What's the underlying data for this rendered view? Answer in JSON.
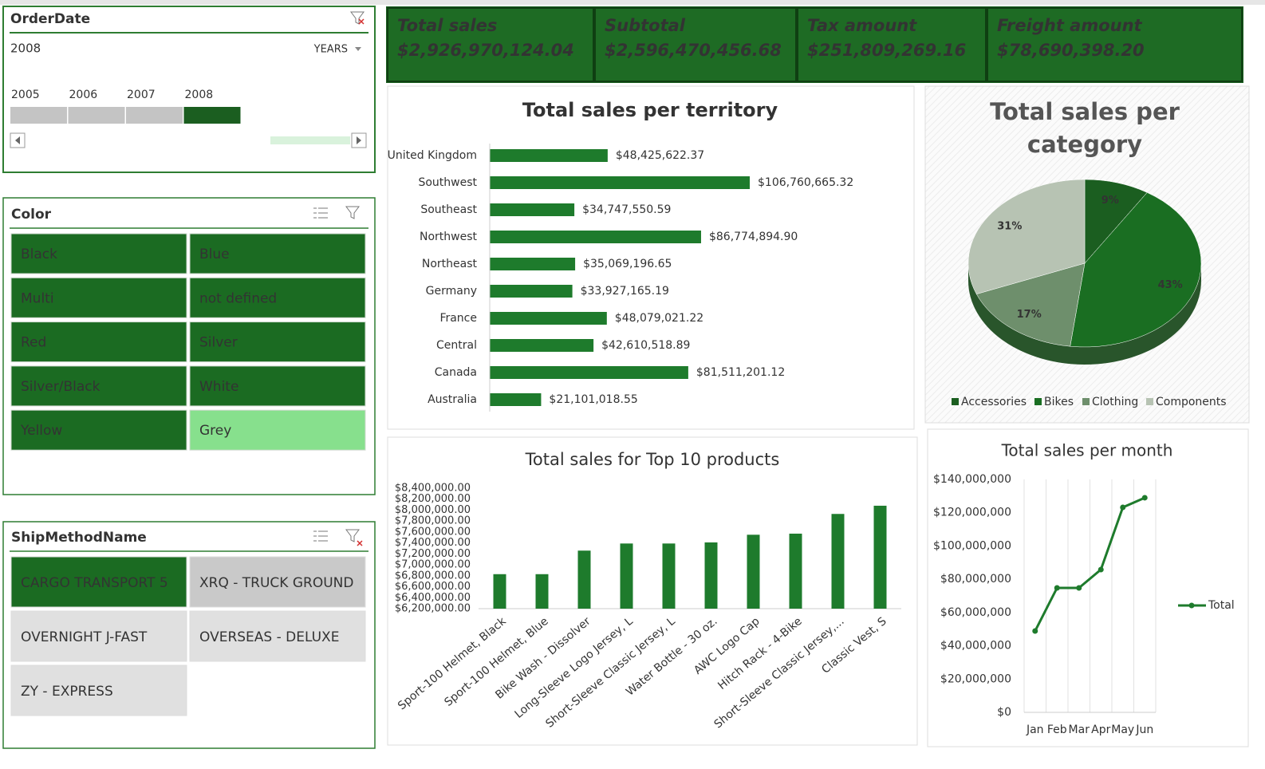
{
  "order_date_slicer": {
    "title": "OrderDate",
    "selection": "2008",
    "level": "YEARS",
    "years": [
      "2005",
      "2006",
      "2007",
      "2008"
    ],
    "selected": [
      false,
      false,
      false,
      true
    ]
  },
  "color_slicer": {
    "title": "Color",
    "items": [
      {
        "label": "Black",
        "state": "selected"
      },
      {
        "label": "Blue",
        "state": "selected"
      },
      {
        "label": "Multi",
        "state": "selected"
      },
      {
        "label": "not defined",
        "state": "selected"
      },
      {
        "label": "Red",
        "state": "selected"
      },
      {
        "label": "Silver",
        "state": "selected"
      },
      {
        "label": "Silver/Black",
        "state": "selected"
      },
      {
        "label": "White",
        "state": "selected"
      },
      {
        "label": "Yellow",
        "state": "selected"
      },
      {
        "label": "Grey",
        "state": "available"
      }
    ]
  },
  "ship_slicer": {
    "title": "ShipMethodName",
    "items": [
      {
        "label": "CARGO TRANSPORT 5",
        "state": "selected"
      },
      {
        "label": "XRQ - TRUCK GROUND",
        "state": "available"
      },
      {
        "label": "OVERNIGHT J-FAST",
        "state": "unavailable"
      },
      {
        "label": "OVERSEAS - DELUXE",
        "state": "unavailable"
      },
      {
        "label": "ZY - EXPRESS",
        "state": "unavailable"
      }
    ]
  },
  "kpis": [
    {
      "label": "Total sales",
      "value": "$2,926,970,124.04"
    },
    {
      "label": "Subtotal",
      "value": "$2,596,470,456.68"
    },
    {
      "label": "Tax amount",
      "value": "$251,809,269.16"
    },
    {
      "label": "Freight amount",
      "value": "$78,690,398.20"
    }
  ],
  "chart_data": [
    {
      "type": "bar",
      "orientation": "horizontal",
      "title": "Total sales per territory",
      "color": "#1e7b2c",
      "categories": [
        "United Kingdom",
        "Southwest",
        "Southeast",
        "Northwest",
        "Northeast",
        "Germany",
        "France",
        "Central",
        "Canada",
        "Australia"
      ],
      "values": [
        48425622.37,
        106760665.32,
        34747550.59,
        86774894.9,
        35069196.65,
        33927165.19,
        48079021.22,
        42610518.89,
        81511201.12,
        21101018.55
      ],
      "value_labels": [
        "$48,425,622.37",
        "$106,760,665.32",
        "$34,747,550.59",
        "$86,774,894.90",
        "$35,069,196.65",
        "$33,927,165.19",
        "$48,079,021.22",
        "$42,610,518.89",
        "$81,511,201.12",
        "$21,101,018.55"
      ]
    },
    {
      "type": "pie",
      "title": "Total sales per category",
      "categories": [
        "Accessories",
        "Bikes",
        "Clothing",
        "Components"
      ],
      "values": [
        9,
        43,
        17,
        31
      ],
      "value_labels": [
        "9%",
        "43%",
        "17%",
        "31%"
      ],
      "colors": [
        "#1b5e20",
        "#1a6e22",
        "#6e8f6c",
        "#b7c3b3"
      ],
      "legend": "bottom"
    },
    {
      "type": "bar",
      "orientation": "vertical",
      "title": "Total sales for Top 10 products",
      "color": "#1e7b2c",
      "categories": [
        "Sport-100 Helmet, Black",
        "Sport-100 Helmet, Blue",
        "Bike Wash - Dissolver",
        "Long-Sleeve Logo Jersey, L",
        "Short-Sleeve Classic Jersey, L",
        "Water Bottle - 30 oz.",
        "AWC Logo Cap",
        "Hitch Rack - 4-Bike",
        "Short-Sleeve Classic Jersey,...",
        "Classic Vest, S"
      ],
      "values": [
        6830000,
        6830000,
        7260000,
        7390000,
        7390000,
        7410000,
        7550000,
        7570000,
        7930000,
        8080000
      ],
      "ylim": [
        6200000,
        8400000
      ],
      "yticks": [
        {
          "value": 6200000,
          "label": "$6,200,000.00"
        },
        {
          "value": 6400000,
          "label": "$6,400,000.00"
        },
        {
          "value": 6600000,
          "label": "$6,600,000.00"
        },
        {
          "value": 6800000,
          "label": "$6,800,000.00"
        },
        {
          "value": 7000000,
          "label": "$7,000,000.00"
        },
        {
          "value": 7200000,
          "label": "$7,200,000.00"
        },
        {
          "value": 7400000,
          "label": "$7,400,000.00"
        },
        {
          "value": 7600000,
          "label": "$7,600,000.00"
        },
        {
          "value": 7800000,
          "label": "$7,800,000.00"
        },
        {
          "value": 8000000,
          "label": "$8,000,000.00"
        },
        {
          "value": 8200000,
          "label": "$8,200,000.00"
        },
        {
          "value": 8400000,
          "label": "$8,400,000.00"
        }
      ],
      "grid": false
    },
    {
      "type": "line",
      "title": "Total sales per month",
      "categories": [
        "Jan",
        "Feb",
        "Mar",
        "Apr",
        "May",
        "Jun"
      ],
      "series": [
        {
          "name": "Total",
          "color": "#1e7b2c",
          "values": [
            48900000,
            74800000,
            74800000,
            85800000,
            123200000,
            129000000
          ]
        }
      ],
      "ylim": [
        0,
        140000000
      ],
      "yticks": [
        {
          "value": 0,
          "label": "$0"
        },
        {
          "value": 20000000,
          "label": "$20,000,000"
        },
        {
          "value": 40000000,
          "label": "$40,000,000"
        },
        {
          "value": 60000000,
          "label": "$60,000,000"
        },
        {
          "value": 80000000,
          "label": "$80,000,000"
        },
        {
          "value": 100000000,
          "label": "$100,000,000"
        },
        {
          "value": 120000000,
          "label": "$120,000,000"
        },
        {
          "value": 140000000,
          "label": "$140,000,000"
        }
      ],
      "grid": true,
      "legend": "right"
    }
  ]
}
